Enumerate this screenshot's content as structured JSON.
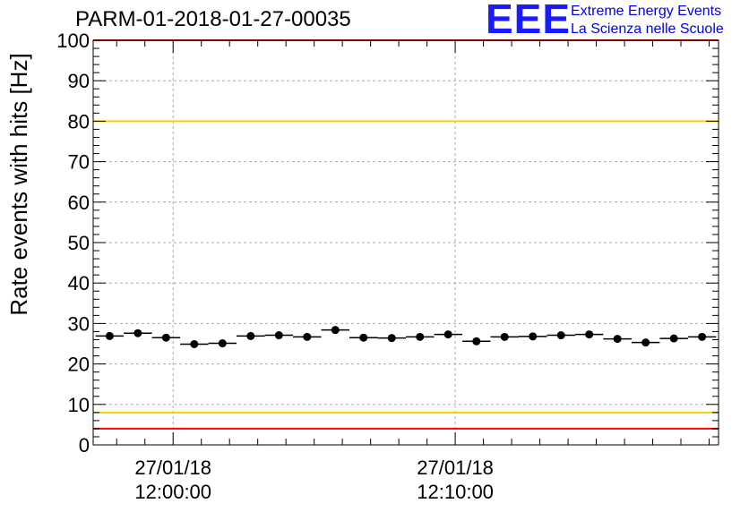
{
  "title": "PARM-01-2018-01-27-00035",
  "logo": {
    "mark": "EEE",
    "line1": "Extreme Energy Events",
    "line2": "La Scienza nelle Scuole"
  },
  "chart_data": {
    "type": "scatter",
    "title": "PARM-01-2018-01-27-00035",
    "xlabel": "",
    "ylabel": "Rate events with hits [Hz]",
    "ylim": [
      0,
      100
    ],
    "yticks": [
      0,
      10,
      20,
      30,
      40,
      50,
      60,
      70,
      80,
      90,
      100
    ],
    "x_time_range": [
      "2018-01-27 11:57:10",
      "2018-01-27 12:19:20"
    ],
    "xtick_labels": [
      {
        "time": "2018-01-27 12:00:00",
        "line1": "27/01/18",
        "line2": "12:00:00"
      },
      {
        "time": "2018-01-27 12:10:00",
        "line1": "27/01/18",
        "line2": "12:10:00"
      }
    ],
    "grid": true,
    "bin_width_seconds": 60,
    "series": [
      {
        "marker": "filled-circle",
        "color": "#000000",
        "x": [
          "2018-01-27 11:57:45",
          "2018-01-27 11:58:45",
          "2018-01-27 11:59:45",
          "2018-01-27 12:00:45",
          "2018-01-27 12:01:45",
          "2018-01-27 12:02:45",
          "2018-01-27 12:03:45",
          "2018-01-27 12:04:45",
          "2018-01-27 12:05:45",
          "2018-01-27 12:06:45",
          "2018-01-27 12:07:45",
          "2018-01-27 12:08:45",
          "2018-01-27 12:09:45",
          "2018-01-27 12:10:45",
          "2018-01-27 12:11:45",
          "2018-01-27 12:12:45",
          "2018-01-27 12:13:45",
          "2018-01-27 12:14:45",
          "2018-01-27 12:15:45",
          "2018-01-27 12:16:45",
          "2018-01-27 12:17:45",
          "2018-01-27 12:18:45"
        ],
        "values": [
          26.9,
          27.6,
          26.5,
          24.9,
          25.1,
          26.9,
          27.1,
          26.7,
          28.4,
          26.5,
          26.4,
          26.7,
          27.3,
          25.6,
          26.7,
          26.8,
          27.1,
          27.3,
          26.2,
          25.3,
          26.3,
          26.7
        ]
      }
    ],
    "reference_lines": [
      {
        "value": 100,
        "color": "#ff0000"
      },
      {
        "value": 80,
        "color": "#ffcc00"
      },
      {
        "value": 8,
        "color": "#ffcc00"
      },
      {
        "value": 4,
        "color": "#ff0000"
      }
    ]
  }
}
